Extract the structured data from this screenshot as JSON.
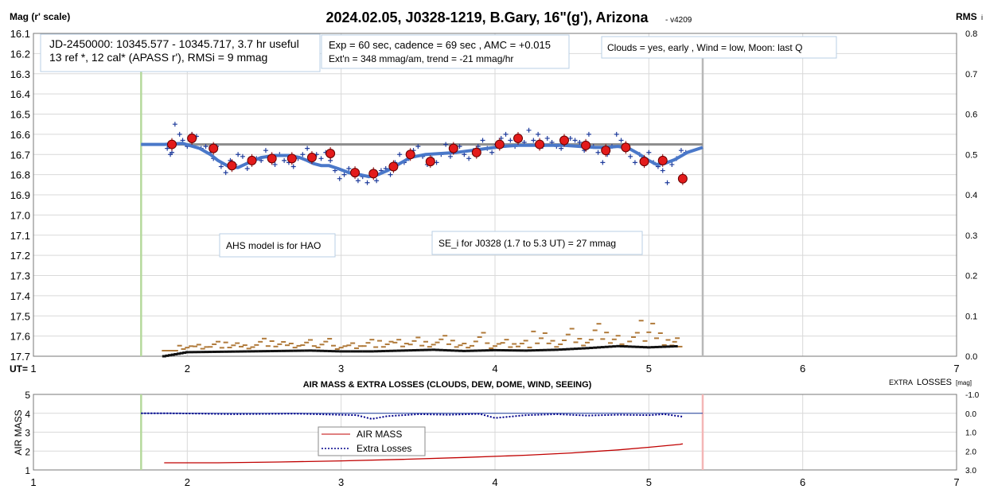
{
  "chart_data": [
    {
      "type": "scatter",
      "title": "2024.02.05, J0328-1219, B.Gary, 16\"(g'), Arizona",
      "version": "- v4209",
      "ylabel": "Mag (r' scale)",
      "y2label": "RMS",
      "y2label_suffix": "i",
      "xlabel": "UT=",
      "xlim": [
        1,
        7
      ],
      "ylim": [
        16.1,
        17.7
      ],
      "y_inverted": true,
      "y2lim": [
        0.0,
        0.8
      ],
      "x_ticks": [
        "1",
        "2",
        "3",
        "4",
        "5",
        "6",
        "7"
      ],
      "y_ticks": [
        "16.1",
        "16.2",
        "16.3",
        "16.4",
        "16.5",
        "16.6",
        "16.7",
        "16.8",
        "16.9",
        "17.0",
        "17.1",
        "17.2",
        "17.3",
        "17.4",
        "17.5",
        "17.6",
        "17.7"
      ],
      "y2_ticks": [
        "0.8",
        "0.7",
        "0.6",
        "0.5",
        "0.4",
        "0.3",
        "0.2",
        "0.1",
        "0.0"
      ],
      "grid": true,
      "annotations": {
        "jd": [
          "JD-2450000: 10345.577 - 10345.717, 3.7 hr useful",
          "13 ref *, 12 cal*  (APASS r'), RMSi = 9 mmag"
        ],
        "exp": [
          "Exp = 60 sec, cadence = 69 sec , AMC = +0.015",
          "Ext'n = 348 mmag/am, trend = -21 mmag/hr"
        ],
        "clouds": "Clouds = yes, early , Wind = low,  Moon:  last Q",
        "ahs": "AHS model is for HAO",
        "se": "SE_i for J0328 (1.7 to 5.3 UT) = 27 mmag"
      },
      "markers": {
        "ingress_ut": 1.7,
        "egress_ut": 5.35,
        "ingress_color": "#b5d99c",
        "egress_color": "#b8b8b8"
      },
      "oot_level": {
        "x": [
          1.7,
          5.35
        ],
        "y": 16.65
      },
      "binned_points": {
        "x": [
          1.9,
          2.03,
          2.17,
          2.29,
          2.42,
          2.55,
          2.68,
          2.81,
          2.93,
          3.09,
          3.21,
          3.34,
          3.45,
          3.58,
          3.73,
          3.88,
          4.03,
          4.15,
          4.29,
          4.45,
          4.59,
          4.72,
          4.85,
          4.97,
          5.09,
          5.22
        ],
        "y": [
          16.65,
          16.62,
          16.67,
          16.755,
          16.73,
          16.72,
          16.72,
          16.715,
          16.695,
          16.79,
          16.795,
          16.76,
          16.7,
          16.735,
          16.67,
          16.69,
          16.65,
          16.62,
          16.65,
          16.63,
          16.655,
          16.68,
          16.665,
          16.735,
          16.73,
          16.82
        ]
      },
      "raw_points": {
        "x": [
          1.87,
          1.89,
          1.9,
          1.92,
          1.95,
          1.97,
          2.0,
          2.03,
          2.06,
          2.09,
          2.12,
          2.15,
          2.17,
          2.19,
          2.22,
          2.25,
          2.28,
          2.31,
          2.33,
          2.36,
          2.39,
          2.42,
          2.45,
          2.48,
          2.51,
          2.54,
          2.57,
          2.6,
          2.63,
          2.66,
          2.69,
          2.72,
          2.75,
          2.78,
          2.81,
          2.84,
          2.87,
          2.9,
          2.93,
          2.96,
          2.99,
          3.02,
          3.05,
          3.08,
          3.11,
          3.14,
          3.17,
          3.2,
          3.23,
          3.26,
          3.29,
          3.32,
          3.35,
          3.38,
          3.41,
          3.44,
          3.47,
          3.5,
          3.53,
          3.56,
          3.59,
          3.62,
          3.65,
          3.68,
          3.71,
          3.74,
          3.77,
          3.8,
          3.83,
          3.86,
          3.89,
          3.92,
          3.95,
          3.98,
          4.01,
          4.04,
          4.07,
          4.1,
          4.13,
          4.16,
          4.19,
          4.22,
          4.25,
          4.28,
          4.31,
          4.34,
          4.37,
          4.4,
          4.43,
          4.46,
          4.49,
          4.52,
          4.55,
          4.58,
          4.61,
          4.64,
          4.67,
          4.7,
          4.73,
          4.76,
          4.79,
          4.82,
          4.85,
          4.88,
          4.91,
          4.94,
          4.97,
          5.0,
          5.03,
          5.06,
          5.09,
          5.12,
          5.15,
          5.18,
          5.21,
          5.24
        ],
        "y": [
          16.67,
          16.7,
          16.69,
          16.55,
          16.6,
          16.63,
          16.66,
          16.6,
          16.61,
          16.67,
          16.66,
          16.69,
          16.72,
          16.66,
          16.76,
          16.79,
          16.73,
          16.75,
          16.7,
          16.71,
          16.77,
          16.74,
          16.72,
          16.73,
          16.68,
          16.71,
          16.75,
          16.7,
          16.73,
          16.74,
          16.76,
          16.72,
          16.7,
          16.67,
          16.71,
          16.7,
          16.72,
          16.69,
          16.73,
          16.78,
          16.82,
          16.8,
          16.77,
          16.79,
          16.83,
          16.81,
          16.84,
          16.8,
          16.83,
          16.78,
          16.77,
          16.8,
          16.74,
          16.7,
          16.74,
          16.72,
          16.68,
          16.66,
          16.71,
          16.75,
          16.72,
          16.74,
          16.7,
          16.65,
          16.71,
          16.68,
          16.66,
          16.7,
          16.72,
          16.68,
          16.66,
          16.63,
          16.67,
          16.69,
          16.65,
          16.62,
          16.6,
          16.63,
          16.66,
          16.61,
          16.64,
          16.58,
          16.63,
          16.6,
          16.66,
          16.62,
          16.64,
          16.66,
          16.67,
          16.65,
          16.62,
          16.63,
          16.64,
          16.68,
          16.6,
          16.66,
          16.69,
          16.74,
          16.7,
          16.66,
          16.6,
          16.63,
          16.67,
          16.71,
          16.74,
          16.7,
          16.72,
          16.69,
          16.74,
          16.76,
          16.78,
          16.84,
          16.75,
          16.72,
          16.68,
          16.69
        ]
      },
      "model_curve": {
        "x": [
          1.7,
          1.85,
          1.97,
          2.08,
          2.15,
          2.2,
          2.27,
          2.33,
          2.4,
          2.48,
          2.57,
          2.66,
          2.73,
          2.78,
          2.82,
          2.87,
          2.92,
          2.98,
          3.05,
          3.12,
          3.18,
          3.24,
          3.3,
          3.37,
          3.45,
          3.55,
          3.65,
          3.75,
          3.85,
          3.95,
          4.05,
          4.15,
          4.25,
          4.35,
          4.45,
          4.55,
          4.65,
          4.72,
          4.8,
          4.87,
          4.93,
          5.0,
          5.05,
          5.1,
          5.17,
          5.25,
          5.35
        ],
        "y": [
          16.65,
          16.65,
          16.645,
          16.67,
          16.7,
          16.73,
          16.76,
          16.765,
          16.74,
          16.715,
          16.705,
          16.705,
          16.715,
          16.73,
          16.745,
          16.755,
          16.755,
          16.77,
          16.79,
          16.8,
          16.81,
          16.8,
          16.78,
          16.75,
          16.715,
          16.7,
          16.695,
          16.69,
          16.68,
          16.67,
          16.66,
          16.655,
          16.655,
          16.655,
          16.655,
          16.66,
          16.665,
          16.665,
          16.66,
          16.67,
          16.695,
          16.73,
          16.75,
          16.745,
          16.725,
          16.69,
          16.665
        ]
      },
      "rms_points": {
        "x": [
          1.85,
          1.95,
          2.05,
          2.15,
          2.25,
          2.35,
          2.45,
          2.55,
          2.65,
          2.75,
          2.85,
          2.95,
          3.05,
          3.15,
          3.25,
          3.35,
          3.45,
          3.55,
          3.65,
          3.75,
          3.85,
          3.95,
          4.05,
          4.15,
          4.25,
          4.35,
          4.45,
          4.55,
          4.65,
          4.75,
          4.85,
          4.95,
          5.05,
          5.15,
          5.22
        ],
        "y": [
          0.0,
          0.01,
          0.012,
          0.018,
          0.015,
          0.01,
          0.022,
          0.016,
          0.012,
          0.018,
          0.02,
          0.01,
          0.015,
          0.022,
          0.018,
          0.02,
          0.024,
          0.015,
          0.025,
          0.012,
          0.03,
          0.015,
          0.022,
          0.02,
          0.035,
          0.018,
          0.04,
          0.02,
          0.045,
          0.025,
          0.03,
          0.06,
          0.035,
          0.025,
          0.07
        ]
      },
      "rms_binned": {
        "x": [
          1.85,
          2.0,
          2.2,
          2.4,
          2.6,
          2.8,
          3.0,
          3.2,
          3.4,
          3.6,
          3.8,
          4.0,
          4.2,
          4.4,
          4.6,
          4.8,
          5.0,
          5.2
        ],
        "y": [
          0.0,
          0.01,
          0.011,
          0.012,
          0.013,
          0.014,
          0.012,
          0.012,
          0.014,
          0.016,
          0.013,
          0.015,
          0.014,
          0.016,
          0.02,
          0.025,
          0.022,
          0.025
        ]
      }
    },
    {
      "type": "line",
      "title": "AIR MASS & EXTRA LOSSES (CLOUDS, DEW, DOME, WIND, SEEING)",
      "ylabel": "AIR MASS",
      "y2label": "EXTRA",
      "y2label_main": "LOSSES",
      "y2label_unit": "[mag]",
      "xlim": [
        1,
        7
      ],
      "ylim": [
        1,
        5
      ],
      "y2lim": [
        -1.0,
        3.0
      ],
      "x_ticks": [
        "1",
        "2",
        "3",
        "4",
        "5",
        "6",
        "7"
      ],
      "y_ticks": [
        "5",
        "4",
        "3",
        "2",
        "1"
      ],
      "y2_ticks": [
        "-1.0",
        "0.0",
        "1.0",
        "2.0",
        "3.0"
      ],
      "legend": [
        "AIR MASS",
        "Extra Losses"
      ],
      "series": [
        {
          "name": "AIR MASS",
          "color": "#c00000",
          "x": [
            1.85,
            2.2,
            2.6,
            3.0,
            3.4,
            3.8,
            4.2,
            4.5,
            4.8,
            5.0,
            5.2,
            5.22
          ],
          "y": [
            1.38,
            1.38,
            1.42,
            1.48,
            1.56,
            1.66,
            1.78,
            1.9,
            2.06,
            2.2,
            2.35,
            2.38
          ]
        },
        {
          "name": "Extra Losses",
          "color": "#00008b",
          "x": [
            1.7,
            1.9,
            2.1,
            2.3,
            2.5,
            2.7,
            2.9,
            3.1,
            3.2,
            3.3,
            3.5,
            3.7,
            3.9,
            4.0,
            4.2,
            4.4,
            4.6,
            4.8,
            5.0,
            5.1,
            5.22
          ],
          "y": [
            0.0,
            0.0,
            0.02,
            0.05,
            0.03,
            0.02,
            0.06,
            0.1,
            0.3,
            0.15,
            0.05,
            0.08,
            0.03,
            0.25,
            0.1,
            0.05,
            0.12,
            0.08,
            0.1,
            0.05,
            0.18
          ]
        }
      ],
      "markers": {
        "ingress_ut": 1.7,
        "egress_ut": 5.35,
        "ingress_color": "#b5d99c",
        "egress_color": "#f4b6b6"
      }
    }
  ]
}
